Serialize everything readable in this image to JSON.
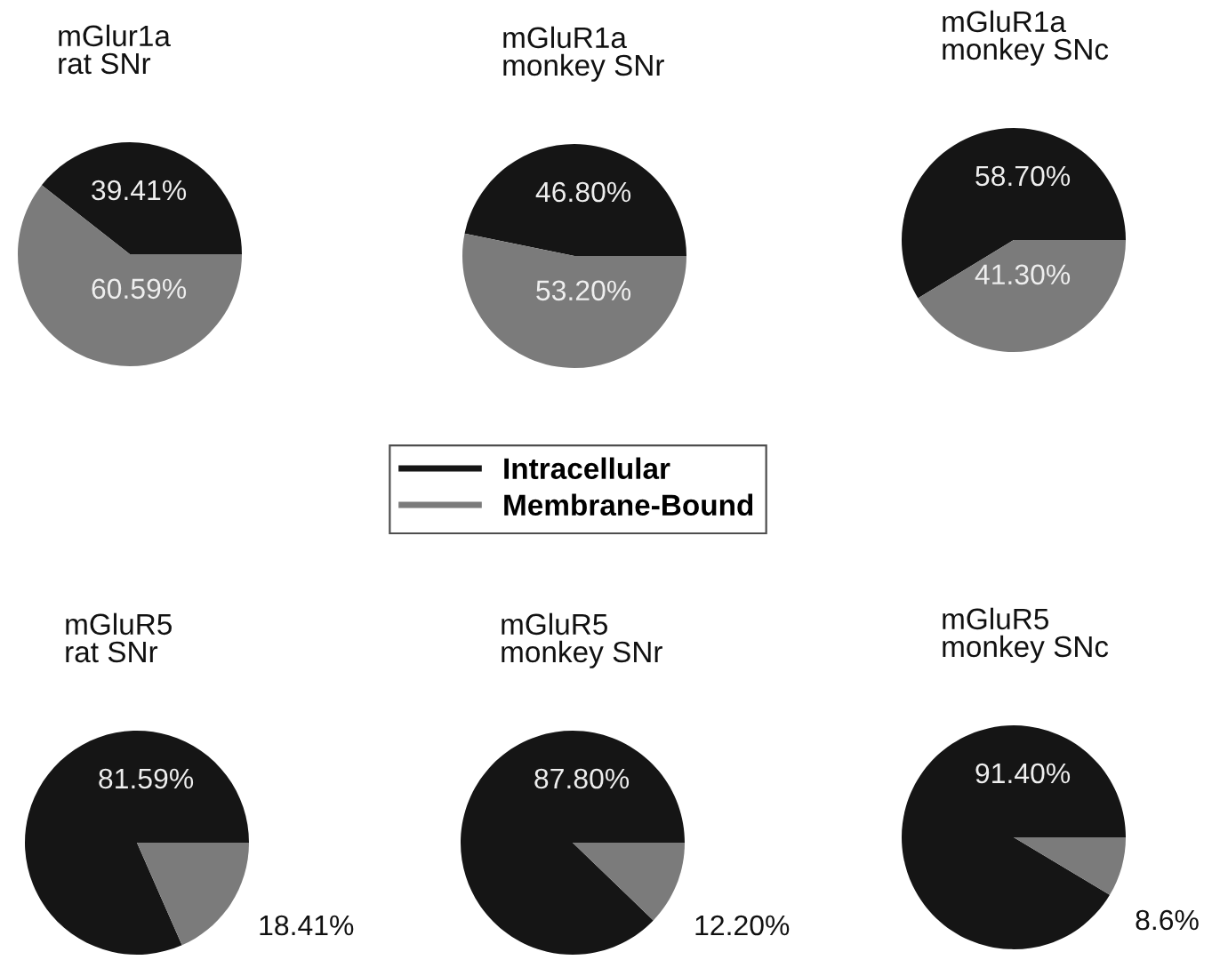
{
  "chart_data": [
    {
      "type": "pie",
      "title": "mGlur1a\nrat SNr",
      "categories": [
        "Intracellular",
        "Membrane-Bound"
      ],
      "values": [
        39.41,
        60.59
      ],
      "colors": [
        "#151515",
        "#7b7b7b"
      ],
      "value_labels": [
        "39.41%",
        "60.59%"
      ],
      "legend": "bottom right"
    },
    {
      "type": "pie",
      "title": "mGluR1a\nmonkey SNr",
      "categories": [
        null,
        null
      ],
      "values": [
        46.8,
        53.2
      ],
      "colors": [
        "#151515",
        "#7b7b7b"
      ],
      "value_labels": [
        "46.80%",
        "53.20%"
      ]
    },
    {
      "type": "pie",
      "title": "mGluR1a\nmonkey SNc",
      "categories": [
        null,
        null
      ],
      "values": [
        58.7,
        41.3
      ],
      "colors": [
        "#151515",
        "#7b7b7b"
      ],
      "value_labels": [
        "58.70%",
        "41.30%"
      ]
    },
    {
      "type": "pie",
      "title": "mGluR5\nrat SNr",
      "categories": [
        null,
        null
      ],
      "values": [
        81.59,
        18.41
      ],
      "colors": [
        "#151515",
        "#7b7b7b"
      ],
      "value_labels": [
        "81.59%",
        "18.41%"
      ]
    },
    {
      "type": "pie",
      "title": "mGluR5\nmonkey SNr",
      "categories": [
        null,
        null
      ],
      "values": [
        87.8,
        12.2
      ],
      "colors": [
        "#151515",
        "#7b7b7b"
      ],
      "value_labels": [
        "87.80%",
        "12.20%"
      ]
    },
    {
      "type": "pie",
      "title": "mGluR5\nmonkey SNc",
      "categories": [
        null,
        null
      ],
      "values": [
        91.4,
        8.6
      ],
      "colors": [
        "#151515",
        "#7b7b7b"
      ],
      "value_labels": [
        "91.40%",
        "8.6%"
      ]
    }
  ]
}
